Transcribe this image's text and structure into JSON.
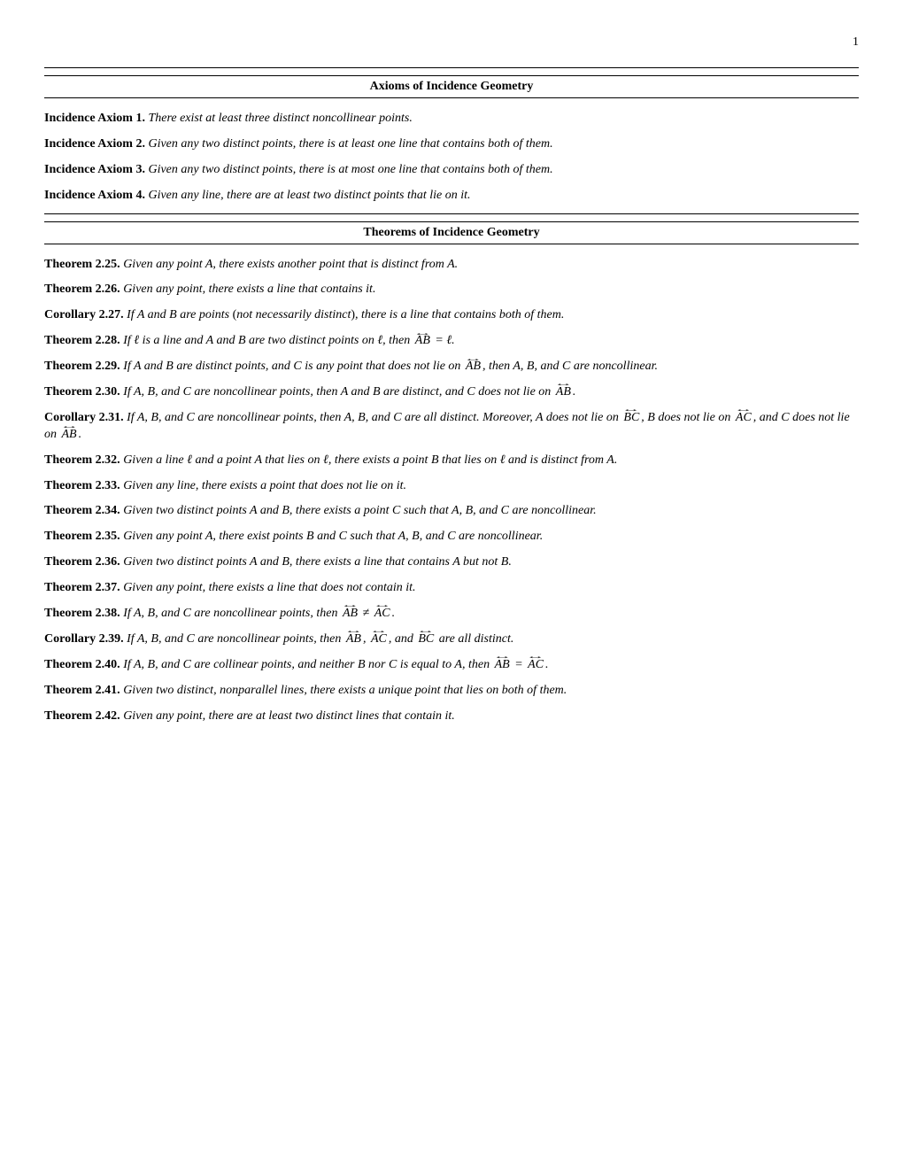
{
  "page_number": "1",
  "sections": [
    {
      "title": "Axioms of Incidence Geometry",
      "items": [
        {
          "label": "Incidence Axiom 1.",
          "text": "There exist at least three distinct noncollinear points."
        },
        {
          "label": "Incidence Axiom 2.",
          "text": "Given any two distinct points, there is at least one line that contains both of them."
        },
        {
          "label": "Incidence Axiom 3.",
          "text": "Given any two distinct points, there is at most one line that contains both of them."
        },
        {
          "label": "Incidence Axiom 4.",
          "text": "Given any line, there are at least two distinct points that lie on it."
        }
      ]
    },
    {
      "title": "Theorems of Incidence Geometry",
      "items": [
        {
          "label": "Theorem 2.25.",
          "html": "Given any point A, there exists another point that is distinct from A."
        },
        {
          "label": "Theorem 2.26.",
          "html": "Given any point, there exists a line that contains it."
        },
        {
          "label": "Corollary 2.27.",
          "html": "If A and B are points <span style='font-style:normal'>(</span>not necessarily distinct<span style='font-style:normal'>)</span>, there is a line that contains both of them."
        },
        {
          "label": "Theorem 2.28.",
          "html": "If ℓ is a line and A and B are two distinct points on ℓ, then <span class='arrow-both'>AB</span> = ℓ."
        },
        {
          "label": "Theorem 2.29.",
          "html": "If A and B are distinct points, and C is any point that does not lie on <span class='arrow-both'>AB</span>, then A, B, and C are noncollinear."
        },
        {
          "label": "Theorem 2.30.",
          "html": "If A, B, and C are noncollinear points, then A and B are distinct, and C does not lie on <span class='arrow-both'>AB</span>."
        },
        {
          "label": "Corollary 2.31.",
          "html": "If A, B, and C are noncollinear points, then A, B, and C are all distinct. Moreover, A does not lie on <span class='arrow-both'>BC</span>, B does not lie on <span class='arrow-both'>AC</span>, and C does not lie on <span class='arrow-both'>AB</span>."
        },
        {
          "label": "Theorem 2.32.",
          "html": "Given a line ℓ and a point A that lies on ℓ, there exists a point B that lies on ℓ and is distinct from A."
        },
        {
          "label": "Theorem 2.33.",
          "html": "Given any line, there exists a point that does not lie on it."
        },
        {
          "label": "Theorem 2.34.",
          "html": "Given two distinct points A and B, there exists a point C such that A, B, and C are noncollinear."
        },
        {
          "label": "Theorem 2.35.",
          "html": "Given any point A, there exist points B and C such that A, B, and C are noncollinear."
        },
        {
          "label": "Theorem 2.36.",
          "html": "Given two distinct points A and B, there exists a line that contains A but not B."
        },
        {
          "label": "Theorem 2.37.",
          "html": "Given any point, there exists a line that does not contain it."
        },
        {
          "label": "Theorem 2.38.",
          "html": "If A, B, and C are noncollinear points, then <span class='arrow-both'>AB</span> ≠ <span class='arrow-both'>AC</span>."
        },
        {
          "label": "Corollary 2.39.",
          "html": "If A, B, and C are noncollinear points, then <span class='arrow-both'>AB</span>, <span class='arrow-both'>AC</span>, and <span class='arrow-both'>BC</span> are all distinct."
        },
        {
          "label": "Theorem 2.40.",
          "html": "If A, B, and C are collinear points, and neither B nor C is equal to A, then <span class='arrow-both'>AB</span> = <span class='arrow-both'>AC</span>."
        },
        {
          "label": "Theorem 2.41.",
          "html": "Given two distinct, nonparallel lines, there exists a unique point that lies on both of them."
        },
        {
          "label": "Theorem 2.42.",
          "html": "Given any point, there are at least two distinct lines that contain it."
        }
      ]
    }
  ]
}
